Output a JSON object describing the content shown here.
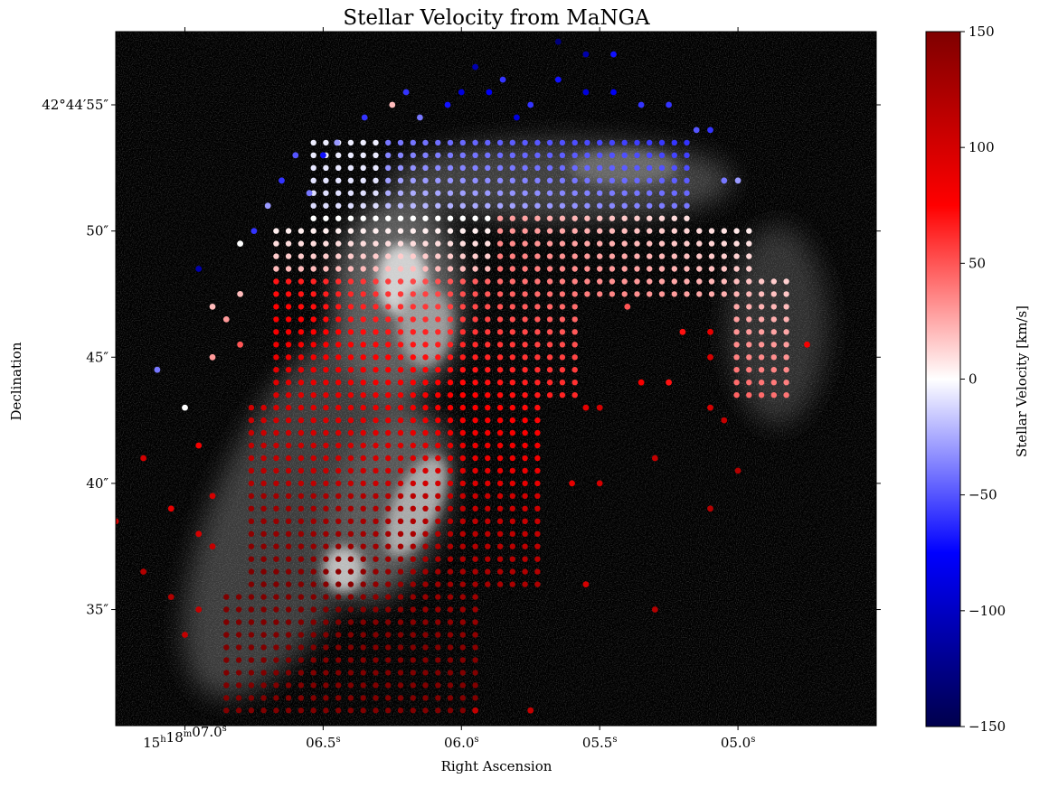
{
  "chart_data": {
    "type": "scatter",
    "title": "Stellar Velocity from MaNGA",
    "xlabel": "Right Ascension",
    "ylabel": "Declination",
    "colorbar_label": "Stellar Velocity [km/s]",
    "colormap": "seismic",
    "clim": [
      -150,
      150
    ],
    "colorbar_ticks": [
      "150",
      "100",
      "50",
      "0",
      "−50",
      "−100",
      "−150"
    ],
    "colorbar_tick_values": [
      150,
      100,
      50,
      0,
      -50,
      -100,
      -150
    ],
    "background": "grayscale galaxy image",
    "grid": false,
    "x_tick_labels": [
      {
        "main": "15",
        "sup1": "h",
        "mid": "18",
        "sup2": "m",
        "end": "07.0",
        "sup3": "s"
      },
      {
        "main": "06.5",
        "sup3": "s"
      },
      {
        "main": "06.0",
        "sup3": "s"
      },
      {
        "main": "05.5",
        "sup3": "s"
      },
      {
        "main": "05.0",
        "sup3": "s"
      }
    ],
    "x_tick_ra_seconds": [
      7.0,
      6.5,
      6.0,
      5.5,
      5.0
    ],
    "xlim_ra_seconds": [
      7.25,
      4.5
    ],
    "y_tick_labels": [
      "42°44′55″",
      "50″",
      "45″",
      "40″",
      "35″"
    ],
    "y_tick_dec_arcsec": [
      55,
      50,
      45,
      40,
      35
    ],
    "ylim_dec_arcsec": [
      30.4,
      57.9
    ],
    "series": [
      {
        "values": [
          [
            5.95,
            56.5,
            -110
          ],
          [
            5.85,
            56.0,
            -60
          ],
          [
            5.65,
            57.5,
            -130
          ],
          [
            5.55,
            57.0,
            -110
          ],
          [
            5.45,
            57.0,
            -70
          ],
          [
            6.2,
            55.5,
            -60
          ],
          [
            6.0,
            55.5,
            -90
          ],
          [
            5.9,
            55.5,
            -80
          ],
          [
            5.65,
            56.0,
            -70
          ],
          [
            5.55,
            55.5,
            -90
          ],
          [
            5.45,
            55.5,
            -80
          ],
          [
            5.35,
            55.0,
            -60
          ],
          [
            5.25,
            55.0,
            -60
          ],
          [
            6.25,
            55.0,
            20
          ],
          [
            6.05,
            55.0,
            -70
          ],
          [
            5.75,
            55.0,
            -60
          ],
          [
            6.35,
            54.5,
            -60
          ],
          [
            6.15,
            54.5,
            -40
          ],
          [
            5.8,
            54.5,
            -90
          ],
          [
            5.15,
            54.0,
            -50
          ],
          [
            5.1,
            54.0,
            -60
          ],
          [
            6.45,
            53.5,
            -30
          ],
          [
            6.6,
            53.0,
            -50
          ],
          [
            6.5,
            53.0,
            -70
          ],
          [
            6.65,
            52.0,
            -60
          ],
          [
            5.05,
            52.0,
            -40
          ],
          [
            5.0,
            52.0,
            -30
          ],
          [
            6.55,
            51.5,
            -40
          ],
          [
            6.7,
            51.0,
            -30
          ],
          [
            6.75,
            50.0,
            -60
          ],
          [
            6.8,
            49.5,
            0
          ],
          [
            6.95,
            48.5,
            -110
          ],
          [
            6.8,
            47.5,
            20
          ],
          [
            6.9,
            47.0,
            20
          ],
          [
            6.85,
            46.5,
            30
          ],
          [
            6.8,
            45.5,
            50
          ],
          [
            6.9,
            45.0,
            30
          ],
          [
            7.1,
            44.5,
            -40
          ],
          [
            7.0,
            43.0,
            0
          ],
          [
            6.95,
            41.5,
            80
          ],
          [
            7.15,
            41.0,
            100
          ],
          [
            7.25,
            38.5,
            100
          ],
          [
            7.05,
            39.0,
            90
          ],
          [
            6.9,
            39.5,
            100
          ],
          [
            6.95,
            38.0,
            100
          ],
          [
            6.9,
            37.5,
            110
          ],
          [
            7.15,
            36.5,
            120
          ],
          [
            7.05,
            35.5,
            120
          ],
          [
            6.95,
            35.0,
            110
          ],
          [
            7.0,
            34.0,
            110
          ],
          [
            5.6,
            40.0,
            90
          ],
          [
            5.5,
            40.0,
            100
          ],
          [
            5.3,
            41.0,
            110
          ],
          [
            5.1,
            39.0,
            120
          ],
          [
            5.0,
            40.5,
            120
          ],
          [
            5.3,
            35.0,
            120
          ],
          [
            5.55,
            36.0,
            100
          ],
          [
            5.75,
            31.0,
            110
          ],
          [
            5.95,
            31.0,
            110
          ],
          [
            5.35,
            44.0,
            80
          ],
          [
            5.25,
            44.0,
            70
          ],
          [
            5.1,
            46.0,
            90
          ],
          [
            5.1,
            45.0,
            100
          ],
          [
            5.1,
            43.0,
            100
          ],
          [
            5.05,
            42.5,
            110
          ],
          [
            5.55,
            43.0,
            90
          ],
          [
            5.5,
            43.0,
            100
          ],
          [
            4.75,
            45.5,
            80
          ],
          [
            5.4,
            47.0,
            50
          ],
          [
            5.2,
            46.0,
            70
          ]
        ]
      }
    ]
  }
}
